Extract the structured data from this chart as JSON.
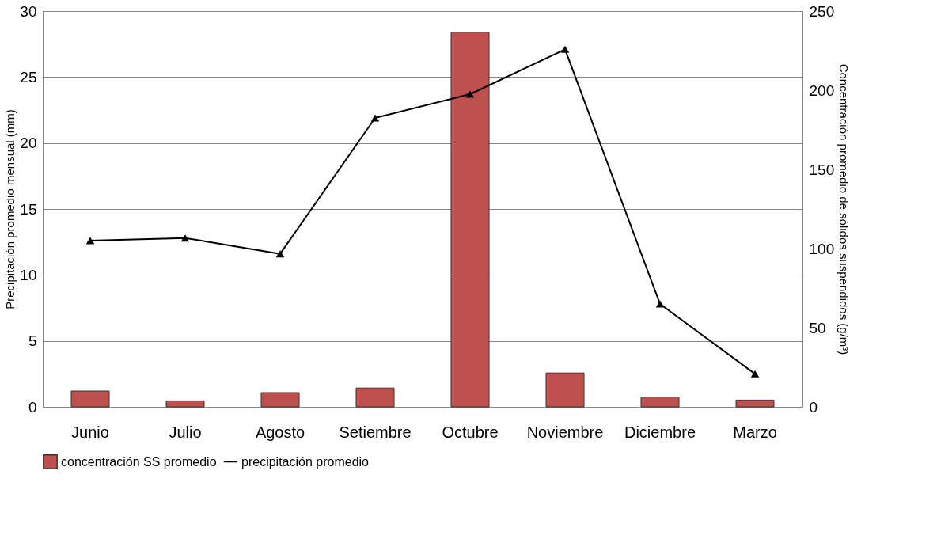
{
  "chart_data": {
    "type": "bar",
    "categories": [
      "Junio",
      "Julio",
      "Agosto",
      "Setiembre",
      "Octubre",
      "Noviembre",
      "Diciembre",
      "Marzo"
    ],
    "ylabel": "Precipitación promedio mensual (mm)",
    "y2label": "Concentración promedio de sólidos suspendidos (g/m³)",
    "ylim": [
      0,
      30
    ],
    "yticks": [
      0,
      5,
      10,
      15,
      20,
      25,
      30
    ],
    "y2lim": [
      0,
      250
    ],
    "y2ticks": [
      0,
      50,
      100,
      150,
      200,
      250
    ],
    "series": [
      {
        "name": "concentración SS promedio",
        "axis": "y2",
        "color": "#c0504d",
        "values": [
          10,
          3.8,
          9,
          11.9,
          236.7,
          21.4,
          6.2,
          4.3
        ]
      },
      {
        "name": "precipitación promedio",
        "type": "line",
        "axis": "y",
        "color": "#000000",
        "marker": "triangle",
        "values": [
          12.6,
          12.8,
          11.6,
          21.9,
          23.7,
          27.1,
          7.8,
          2.5
        ]
      }
    ],
    "grid": "y",
    "legend": "bottom"
  }
}
